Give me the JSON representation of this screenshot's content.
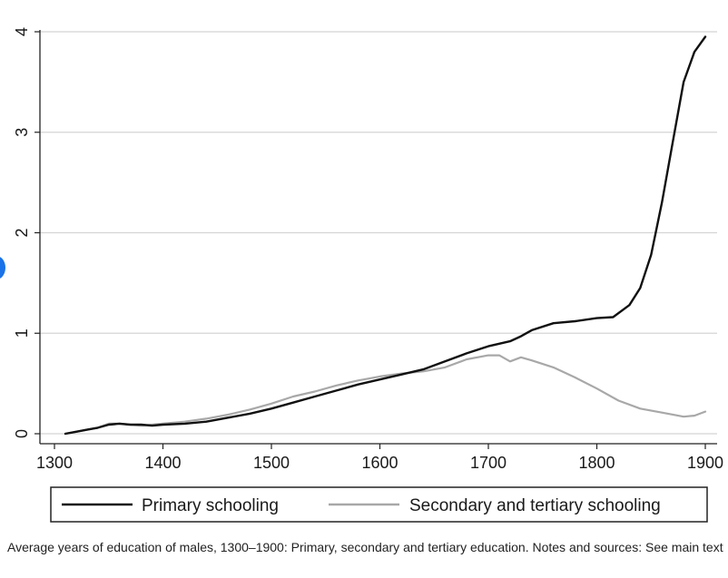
{
  "chart_data": {
    "type": "line",
    "title": "",
    "xlabel": "",
    "ylabel": "",
    "xlim": [
      1300,
      1900
    ],
    "ylim": [
      0,
      4
    ],
    "x_ticks": [
      1300,
      1400,
      1500,
      1600,
      1700,
      1800,
      1900
    ],
    "y_ticks": [
      0,
      1,
      2,
      3,
      4
    ],
    "grid": "horizontal",
    "legend": "bottom",
    "series": [
      {
        "name": "Primary schooling",
        "color": "#111111",
        "points": [
          [
            1310,
            0.0
          ],
          [
            1320,
            0.02
          ],
          [
            1330,
            0.04
          ],
          [
            1340,
            0.06
          ],
          [
            1350,
            0.09
          ],
          [
            1360,
            0.1
          ],
          [
            1370,
            0.09
          ],
          [
            1380,
            0.09
          ],
          [
            1390,
            0.08
          ],
          [
            1400,
            0.09
          ],
          [
            1420,
            0.1
          ],
          [
            1440,
            0.12
          ],
          [
            1460,
            0.16
          ],
          [
            1480,
            0.2
          ],
          [
            1500,
            0.25
          ],
          [
            1520,
            0.31
          ],
          [
            1540,
            0.37
          ],
          [
            1560,
            0.43
          ],
          [
            1580,
            0.49
          ],
          [
            1600,
            0.54
          ],
          [
            1620,
            0.59
          ],
          [
            1640,
            0.64
          ],
          [
            1660,
            0.72
          ],
          [
            1680,
            0.8
          ],
          [
            1700,
            0.87
          ],
          [
            1720,
            0.92
          ],
          [
            1730,
            0.97
          ],
          [
            1740,
            1.03
          ],
          [
            1760,
            1.1
          ],
          [
            1780,
            1.12
          ],
          [
            1800,
            1.15
          ],
          [
            1815,
            1.16
          ],
          [
            1830,
            1.28
          ],
          [
            1840,
            1.45
          ],
          [
            1850,
            1.78
          ],
          [
            1860,
            2.3
          ],
          [
            1870,
            2.9
          ],
          [
            1880,
            3.5
          ],
          [
            1890,
            3.8
          ],
          [
            1900,
            3.95
          ]
        ]
      },
      {
        "name": "Secondary and tertiary schooling",
        "color": "#a8a8a8",
        "points": [
          [
            1310,
            0.0
          ],
          [
            1320,
            0.02
          ],
          [
            1330,
            0.04
          ],
          [
            1340,
            0.06
          ],
          [
            1350,
            0.1
          ],
          [
            1360,
            0.1
          ],
          [
            1370,
            0.09
          ],
          [
            1380,
            0.08
          ],
          [
            1390,
            0.09
          ],
          [
            1400,
            0.1
          ],
          [
            1420,
            0.12
          ],
          [
            1440,
            0.15
          ],
          [
            1460,
            0.19
          ],
          [
            1480,
            0.24
          ],
          [
            1500,
            0.3
          ],
          [
            1520,
            0.37
          ],
          [
            1540,
            0.42
          ],
          [
            1560,
            0.48
          ],
          [
            1580,
            0.53
          ],
          [
            1600,
            0.57
          ],
          [
            1620,
            0.6
          ],
          [
            1640,
            0.62
          ],
          [
            1660,
            0.66
          ],
          [
            1680,
            0.74
          ],
          [
            1700,
            0.78
          ],
          [
            1710,
            0.78
          ],
          [
            1720,
            0.72
          ],
          [
            1730,
            0.76
          ],
          [
            1740,
            0.73
          ],
          [
            1760,
            0.66
          ],
          [
            1780,
            0.56
          ],
          [
            1800,
            0.45
          ],
          [
            1820,
            0.33
          ],
          [
            1840,
            0.25
          ],
          [
            1860,
            0.21
          ],
          [
            1880,
            0.17
          ],
          [
            1890,
            0.18
          ],
          [
            1900,
            0.22
          ]
        ]
      }
    ]
  },
  "caption": "Average years of education of males, 1300–1900: Primary, secondary and tertiary education. Notes and sources: See main text"
}
